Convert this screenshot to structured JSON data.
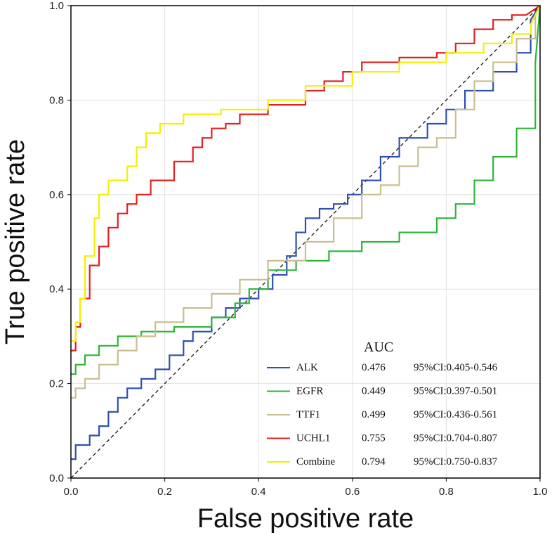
{
  "chart_data": {
    "type": "line",
    "xlabel": "False positive rate",
    "ylabel": "True positive rate",
    "xlim": [
      0,
      1
    ],
    "ylim": [
      0,
      1
    ],
    "grid": true,
    "x_ticks": [
      "0.0",
      "0.2",
      "0.4",
      "0.6",
      "0.8",
      "1.0"
    ],
    "y_ticks": [
      "0.0",
      "0.2",
      "0.4",
      "0.6",
      "0.8",
      "1.0"
    ],
    "legend_title": "AUC",
    "legend_position": "bottom-right",
    "reference_line": {
      "x": [
        0,
        1
      ],
      "y": [
        0,
        1
      ],
      "style": "dashed"
    },
    "series": [
      {
        "name": "ALK",
        "auc": "0.476",
        "ci": "95%CI:0.405-0.546",
        "color": "#3050b0",
        "x": [
          0,
          0.01,
          0.01,
          0.04,
          0.04,
          0.06,
          0.06,
          0.08,
          0.08,
          0.1,
          0.1,
          0.12,
          0.12,
          0.15,
          0.15,
          0.18,
          0.18,
          0.21,
          0.21,
          0.24,
          0.24,
          0.26,
          0.26,
          0.3,
          0.3,
          0.33,
          0.33,
          0.36,
          0.36,
          0.4,
          0.4,
          0.43,
          0.43,
          0.46,
          0.46,
          0.48,
          0.48,
          0.5,
          0.5,
          0.53,
          0.53,
          0.56,
          0.56,
          0.59,
          0.59,
          0.62,
          0.62,
          0.66,
          0.66,
          0.7,
          0.7,
          0.76,
          0.76,
          0.8,
          0.8,
          0.84,
          0.84,
          0.9,
          0.9,
          0.95,
          0.95,
          0.98,
          0.98,
          1.0
        ],
        "y": [
          0.04,
          0.04,
          0.07,
          0.07,
          0.09,
          0.09,
          0.11,
          0.11,
          0.14,
          0.14,
          0.17,
          0.17,
          0.19,
          0.19,
          0.21,
          0.21,
          0.23,
          0.23,
          0.26,
          0.26,
          0.29,
          0.29,
          0.31,
          0.31,
          0.34,
          0.34,
          0.36,
          0.36,
          0.38,
          0.38,
          0.4,
          0.4,
          0.43,
          0.43,
          0.47,
          0.47,
          0.52,
          0.52,
          0.55,
          0.55,
          0.57,
          0.57,
          0.58,
          0.58,
          0.6,
          0.6,
          0.63,
          0.63,
          0.68,
          0.68,
          0.72,
          0.72,
          0.75,
          0.75,
          0.78,
          0.78,
          0.82,
          0.82,
          0.86,
          0.86,
          0.9,
          0.9,
          0.97,
          1.0
        ]
      },
      {
        "name": "EGFR",
        "auc": "0.449",
        "ci": "95%CI:0.397-0.501",
        "color": "#2db53a",
        "x": [
          0,
          0.01,
          0.01,
          0.03,
          0.03,
          0.06,
          0.06,
          0.1,
          0.1,
          0.15,
          0.15,
          0.22,
          0.22,
          0.3,
          0.3,
          0.35,
          0.35,
          0.38,
          0.38,
          0.42,
          0.42,
          0.48,
          0.48,
          0.55,
          0.55,
          0.62,
          0.62,
          0.7,
          0.7,
          0.78,
          0.78,
          0.82,
          0.82,
          0.86,
          0.86,
          0.9,
          0.9,
          0.95,
          0.95,
          0.99,
          0.99,
          1.0
        ],
        "y": [
          0.22,
          0.22,
          0.24,
          0.24,
          0.26,
          0.26,
          0.28,
          0.28,
          0.3,
          0.3,
          0.31,
          0.31,
          0.32,
          0.32,
          0.34,
          0.34,
          0.37,
          0.37,
          0.4,
          0.4,
          0.44,
          0.44,
          0.46,
          0.46,
          0.48,
          0.48,
          0.5,
          0.5,
          0.52,
          0.52,
          0.55,
          0.55,
          0.58,
          0.58,
          0.63,
          0.63,
          0.68,
          0.68,
          0.74,
          0.74,
          0.88,
          1.0
        ]
      },
      {
        "name": "TTF1",
        "auc": "0.499",
        "ci": "95%CI:0.436-0.561",
        "color": "#c8bf90",
        "x": [
          0,
          0.01,
          0.01,
          0.03,
          0.03,
          0.06,
          0.06,
          0.1,
          0.1,
          0.14,
          0.14,
          0.18,
          0.18,
          0.24,
          0.24,
          0.3,
          0.3,
          0.36,
          0.36,
          0.42,
          0.42,
          0.5,
          0.5,
          0.56,
          0.56,
          0.62,
          0.62,
          0.66,
          0.66,
          0.7,
          0.7,
          0.74,
          0.74,
          0.78,
          0.78,
          0.82,
          0.82,
          0.86,
          0.86,
          0.9,
          0.9,
          0.95,
          0.95,
          0.99,
          0.99,
          1.0
        ],
        "y": [
          0.17,
          0.17,
          0.19,
          0.19,
          0.21,
          0.21,
          0.24,
          0.24,
          0.27,
          0.27,
          0.3,
          0.3,
          0.33,
          0.33,
          0.36,
          0.36,
          0.39,
          0.39,
          0.42,
          0.42,
          0.46,
          0.46,
          0.5,
          0.5,
          0.55,
          0.55,
          0.6,
          0.6,
          0.62,
          0.62,
          0.66,
          0.66,
          0.7,
          0.7,
          0.72,
          0.72,
          0.78,
          0.78,
          0.84,
          0.84,
          0.88,
          0.88,
          0.93,
          0.93,
          0.98,
          1.0
        ]
      },
      {
        "name": "UCHL1",
        "auc": "0.755",
        "ci": "95%CI:0.704-0.807",
        "color": "#e02020",
        "x": [
          0,
          0.01,
          0.01,
          0.02,
          0.02,
          0.04,
          0.04,
          0.06,
          0.06,
          0.08,
          0.08,
          0.1,
          0.1,
          0.12,
          0.12,
          0.14,
          0.14,
          0.17,
          0.17,
          0.22,
          0.22,
          0.26,
          0.26,
          0.28,
          0.28,
          0.3,
          0.3,
          0.33,
          0.33,
          0.36,
          0.36,
          0.42,
          0.42,
          0.5,
          0.5,
          0.54,
          0.54,
          0.58,
          0.58,
          0.62,
          0.62,
          0.7,
          0.7,
          0.78,
          0.78,
          0.82,
          0.82,
          0.86,
          0.86,
          0.9,
          0.9,
          0.94,
          0.94,
          0.97,
          0.97,
          1.0
        ],
        "y": [
          0.27,
          0.27,
          0.32,
          0.32,
          0.38,
          0.38,
          0.45,
          0.45,
          0.49,
          0.49,
          0.53,
          0.53,
          0.56,
          0.56,
          0.58,
          0.58,
          0.6,
          0.6,
          0.63,
          0.63,
          0.67,
          0.67,
          0.7,
          0.7,
          0.72,
          0.72,
          0.74,
          0.74,
          0.75,
          0.75,
          0.77,
          0.77,
          0.79,
          0.79,
          0.82,
          0.82,
          0.84,
          0.84,
          0.86,
          0.86,
          0.88,
          0.88,
          0.89,
          0.89,
          0.9,
          0.9,
          0.92,
          0.92,
          0.95,
          0.95,
          0.97,
          0.97,
          0.98,
          0.98,
          0.98,
          1.0
        ]
      },
      {
        "name": "Combine",
        "auc": "0.794",
        "ci": "95%CI:0.750-0.837",
        "color": "#f4f000",
        "x": [
          0,
          0.01,
          0.01,
          0.02,
          0.02,
          0.03,
          0.03,
          0.05,
          0.05,
          0.06,
          0.06,
          0.08,
          0.08,
          0.12,
          0.12,
          0.14,
          0.14,
          0.16,
          0.16,
          0.19,
          0.19,
          0.24,
          0.24,
          0.32,
          0.32,
          0.42,
          0.42,
          0.5,
          0.5,
          0.6,
          0.6,
          0.7,
          0.7,
          0.8,
          0.8,
          0.88,
          0.88,
          0.94,
          0.94,
          0.98,
          0.98,
          1.0
        ],
        "y": [
          0.29,
          0.29,
          0.33,
          0.33,
          0.38,
          0.38,
          0.47,
          0.47,
          0.55,
          0.55,
          0.6,
          0.6,
          0.63,
          0.63,
          0.66,
          0.66,
          0.7,
          0.7,
          0.73,
          0.73,
          0.75,
          0.75,
          0.77,
          0.77,
          0.78,
          0.78,
          0.8,
          0.8,
          0.83,
          0.83,
          0.86,
          0.86,
          0.88,
          0.88,
          0.9,
          0.9,
          0.92,
          0.92,
          0.94,
          0.94,
          0.96,
          1.0
        ]
      }
    ]
  }
}
